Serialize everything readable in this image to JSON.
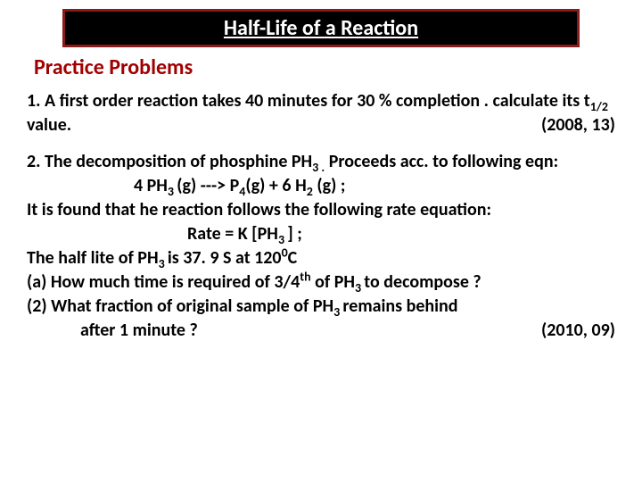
{
  "title": "Half-Life of a Reaction",
  "subtitle": "Practice Problems",
  "p1": {
    "num": "1.",
    "text_a": " A first order reaction  takes 40 minutes for 30 % completion . calculate its t",
    "sub1": "1/2",
    "text_b": " value.",
    "year": "(2008, 13)"
  },
  "p2": {
    "num": "2.",
    "text_a": " The decomposition of phosphine  PH",
    "sub_3a": "3 .",
    "text_b": " Proceeds acc. to following eqn:",
    "eqn_a": "4 PH",
    "eqn_b": "(g)   ---> P",
    "eqn_c": "(g)  + 6 H",
    "eqn_d": "  (g)   ;",
    "s3": "3 ",
    "s4": "4",
    "s2": "2",
    "line_c": " It is found that he reaction follows the following rate equation:",
    "rate_a": "Rate  = K [PH",
    "rate_b": "]  ;",
    "hl_a": "The half lite of  PH",
    "hl_b": "  is  37. 9  S at  120",
    "hl_c": "C",
    "deg": "0",
    "qa_a": "(a) How much time is required of  3/4",
    "qa_b": "  of PH",
    "qa_c": " to decompose  ?",
    "th": "th",
    "qb_a": "(2) What fraction of original sample of  PH",
    "qb_b": " remains behind",
    "qb_c": "after 1 minute ?",
    "year": "(2010, 09)"
  }
}
